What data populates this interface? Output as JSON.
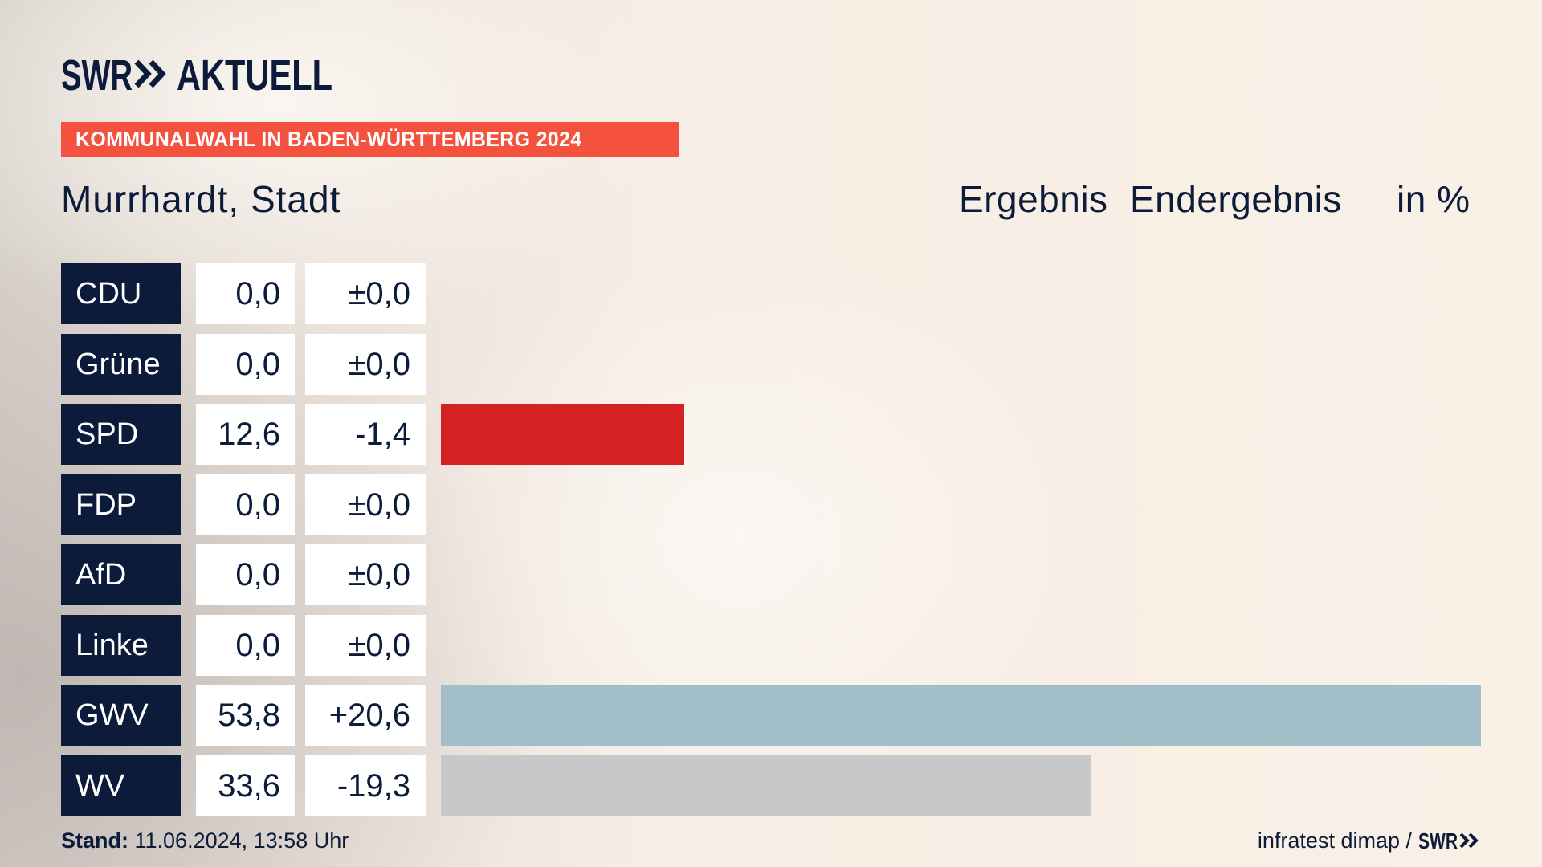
{
  "header": {
    "logo_swr": "SWR",
    "logo_aktuell": "AKTUELL",
    "banner": "KOMMUNALWAHL IN BADEN-WÜRTTEMBERG 2024"
  },
  "footer": {
    "stand_label": "Stand:",
    "stand_value": "11.06.2024, 13:58 Uhr",
    "source": "infratest dimap /",
    "source_logo": "SWR"
  },
  "colors": {
    "navy": "#0c1b3a",
    "banner": "#f5513f",
    "cell": "#ffffff"
  },
  "icons": {
    "logo_arrows": "double-chevron-right-icon"
  },
  "chart_data": {
    "type": "bar",
    "orientation": "horizontal",
    "title": "Murrhardt, Stadt",
    "result_label": "Ergebnis",
    "result_status": "Endergebnis",
    "unit": "in %",
    "categories": [
      "CDU",
      "Grüne",
      "SPD",
      "FDP",
      "AfD",
      "Linke",
      "GWV",
      "WV"
    ],
    "values": [
      0.0,
      0.0,
      12.6,
      0.0,
      0.0,
      0.0,
      53.8,
      33.6
    ],
    "value_labels": [
      "0,0",
      "0,0",
      "12,6",
      "0,0",
      "0,0",
      "0,0",
      "53,8",
      "33,6"
    ],
    "change_labels": [
      "±0,0",
      "±0,0",
      "-1,4",
      "±0,0",
      "±0,0",
      "±0,0",
      "+20,6",
      "-19,3"
    ],
    "bar_colors": [
      null,
      null,
      "#d42121",
      null,
      null,
      null,
      "#a2bfc9",
      "#c8c8c8"
    ],
    "xlim": [
      0,
      53.8
    ],
    "grid": false,
    "legend": "none"
  }
}
